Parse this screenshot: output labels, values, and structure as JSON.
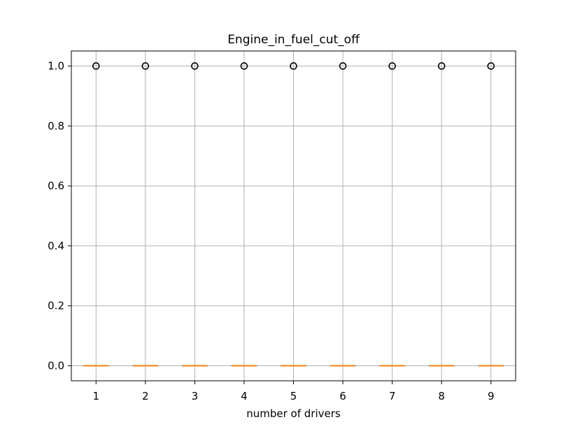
{
  "chart_data": {
    "type": "box",
    "title": "Engine_in_fuel_cut_off",
    "xlabel": "number of drivers",
    "ylabel": "",
    "categories": [
      "1",
      "2",
      "3",
      "4",
      "5",
      "6",
      "7",
      "8",
      "9"
    ],
    "boxes": [
      {
        "category": "1",
        "q1": 0.0,
        "median": 0.0,
        "q3": 0.0,
        "whisker_low": 0.0,
        "whisker_high": 0.0,
        "outliers": [
          1.0
        ]
      },
      {
        "category": "2",
        "q1": 0.0,
        "median": 0.0,
        "q3": 0.0,
        "whisker_low": 0.0,
        "whisker_high": 0.0,
        "outliers": [
          1.0
        ]
      },
      {
        "category": "3",
        "q1": 0.0,
        "median": 0.0,
        "q3": 0.0,
        "whisker_low": 0.0,
        "whisker_high": 0.0,
        "outliers": [
          1.0
        ]
      },
      {
        "category": "4",
        "q1": 0.0,
        "median": 0.0,
        "q3": 0.0,
        "whisker_low": 0.0,
        "whisker_high": 0.0,
        "outliers": [
          1.0
        ]
      },
      {
        "category": "5",
        "q1": 0.0,
        "median": 0.0,
        "q3": 0.0,
        "whisker_low": 0.0,
        "whisker_high": 0.0,
        "outliers": [
          1.0
        ]
      },
      {
        "category": "6",
        "q1": 0.0,
        "median": 0.0,
        "q3": 0.0,
        "whisker_low": 0.0,
        "whisker_high": 0.0,
        "outliers": [
          1.0
        ]
      },
      {
        "category": "7",
        "q1": 0.0,
        "median": 0.0,
        "q3": 0.0,
        "whisker_low": 0.0,
        "whisker_high": 0.0,
        "outliers": [
          1.0
        ]
      },
      {
        "category": "8",
        "q1": 0.0,
        "median": 0.0,
        "q3": 0.0,
        "whisker_low": 0.0,
        "whisker_high": 0.0,
        "outliers": [
          1.0
        ]
      },
      {
        "category": "9",
        "q1": 0.0,
        "median": 0.0,
        "q3": 0.0,
        "whisker_low": 0.0,
        "whisker_high": 0.0,
        "outliers": [
          1.0
        ]
      }
    ],
    "yticks": [
      "0.0",
      "0.2",
      "0.4",
      "0.6",
      "0.8",
      "1.0"
    ],
    "ylim": [
      -0.05,
      1.05
    ],
    "grid": true,
    "colors": {
      "median": "#ff7f0e",
      "box": "#000000",
      "grid": "#b0b0b0",
      "outlier": "#000000"
    }
  }
}
